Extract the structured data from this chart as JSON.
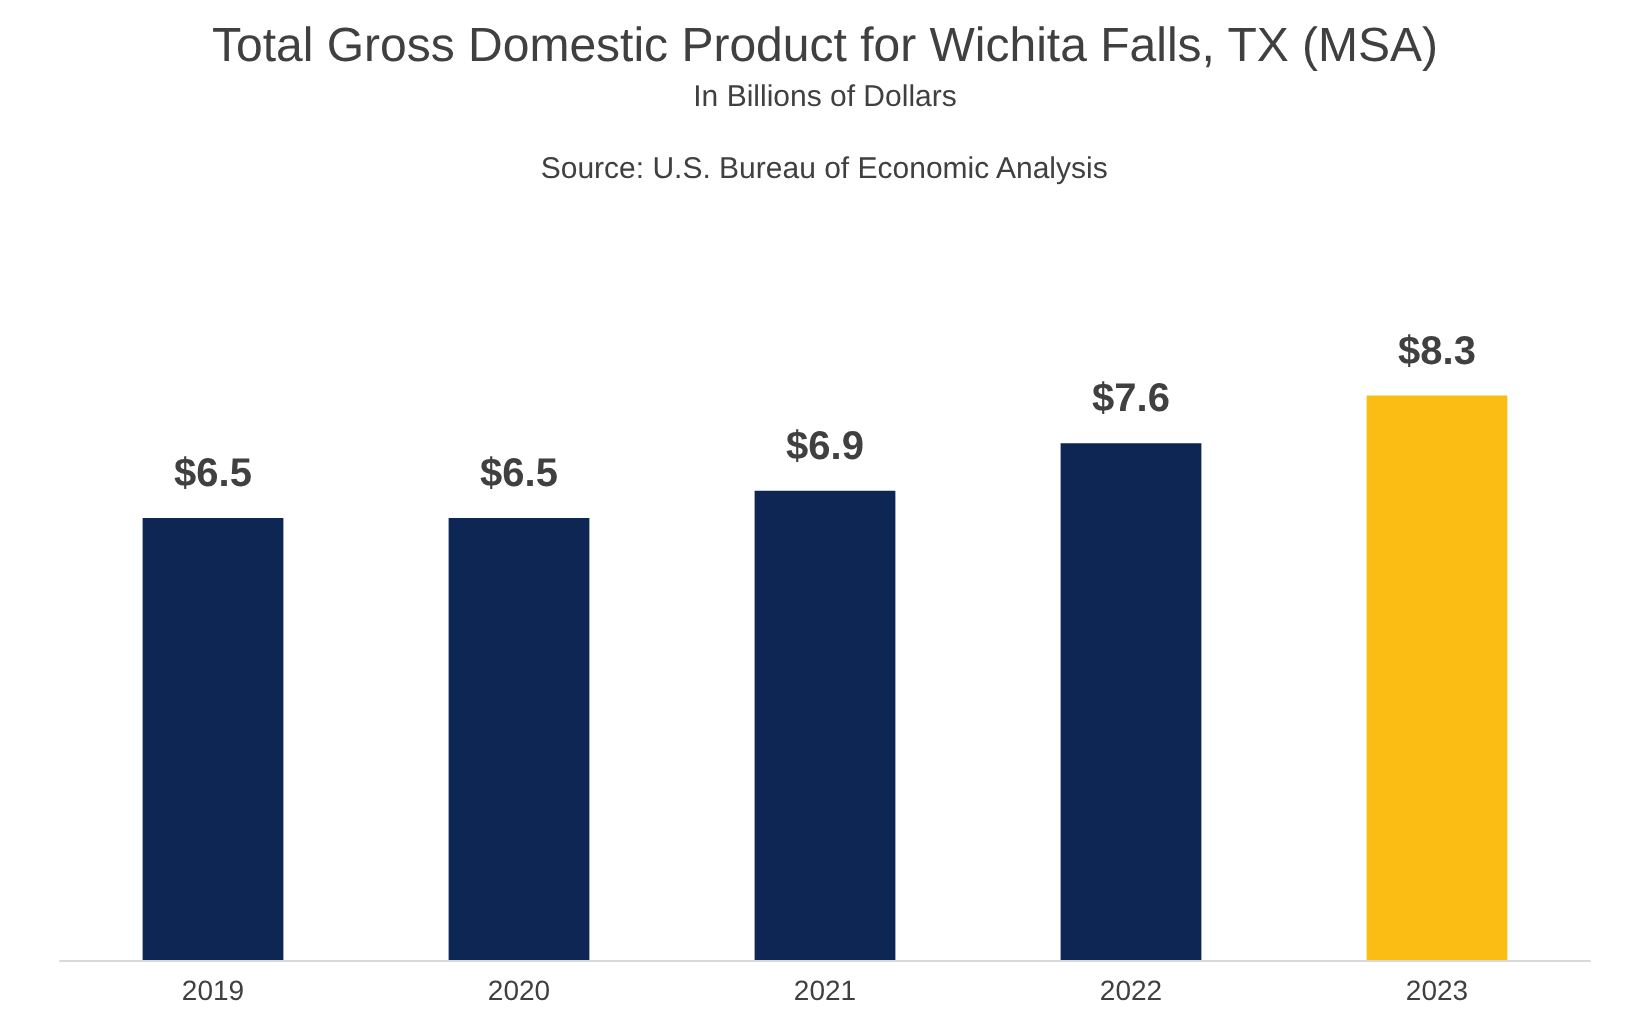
{
  "chart_data": {
    "type": "bar",
    "title": "Total Gross Domestic Product for Wichita Falls, TX (MSA)",
    "subtitle": "In Billions of Dollars",
    "annotations": [
      "Source: U.S. Bureau of Economic Analysis"
    ],
    "categories": [
      "2019",
      "2020",
      "2021",
      "2022",
      "2023"
    ],
    "values": [
      6.5,
      6.5,
      6.9,
      7.6,
      8.3
    ],
    "colors": [
      "#0d2653",
      "#0d2653",
      "#0d2653",
      "#0d2653",
      "#fbbd13"
    ],
    "value_labels": [
      "$6.5",
      "$6.5",
      "$6.9",
      "$7.6",
      "$8.3"
    ]
  }
}
